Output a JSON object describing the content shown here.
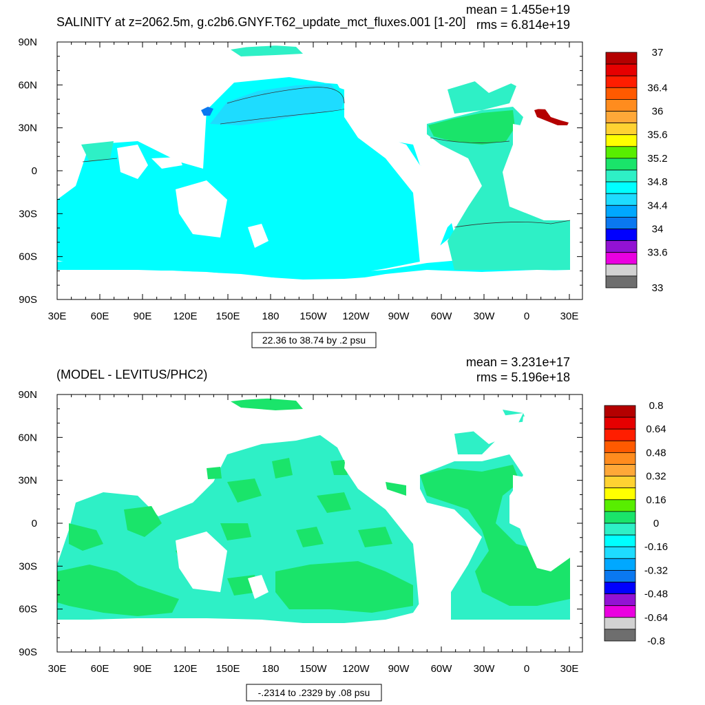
{
  "chart_data": [
    {
      "type": "heatmap",
      "title": "SALINITY at z=2062.5m, g.c2b6.GNYF.T62_update_mct_fluxes.001 [1-20]",
      "stats": {
        "mean": "mean = 1.455e+19",
        "rms": "rms = 6.814e+19"
      },
      "x_ticks": [
        "30E",
        "60E",
        "90E",
        "120E",
        "150E",
        "180",
        "150W",
        "120W",
        "90W",
        "60W",
        "30W",
        "0",
        "30E"
      ],
      "y_ticks": [
        "90N",
        "60N",
        "30N",
        "0",
        "30S",
        "60S",
        "90S"
      ],
      "xlim": [
        30,
        390
      ],
      "ylim": [
        -90,
        90
      ],
      "contour_info": "22.36 to 38.74 by .2 psu",
      "colorbar": {
        "labels": [
          {
            "text": "37",
            "value": 37
          },
          {
            "text": "36.4",
            "value": 36.4
          },
          {
            "text": "36",
            "value": 36
          },
          {
            "text": "35.6",
            "value": 35.6
          },
          {
            "text": "35.2",
            "value": 35.2
          },
          {
            "text": "34.8",
            "value": 34.8
          },
          {
            "text": "34.4",
            "value": 34.4
          },
          {
            "text": "34",
            "value": 34
          },
          {
            "text": "33.6",
            "value": 33.6
          },
          {
            "text": "33",
            "value": 33
          }
        ]
      },
      "dominant_value": 34.8
    },
    {
      "type": "heatmap",
      "title": "(MODEL - LEVITUS/PHC2)",
      "stats": {
        "mean": "mean = 3.231e+17",
        "rms": "rms = 5.196e+18"
      },
      "x_ticks": [
        "30E",
        "60E",
        "90E",
        "120E",
        "150E",
        "180",
        "150W",
        "120W",
        "90W",
        "60W",
        "30W",
        "0",
        "30E"
      ],
      "y_ticks": [
        "90N",
        "60N",
        "30N",
        "0",
        "30S",
        "60S",
        "90S"
      ],
      "xlim": [
        30,
        390
      ],
      "ylim": [
        -90,
        90
      ],
      "contour_info": "-.2314 to .2329 by .08 psu",
      "colorbar": {
        "labels": [
          {
            "text": "0.8",
            "value": 0.8
          },
          {
            "text": "0.64",
            "value": 0.64
          },
          {
            "text": "0.48",
            "value": 0.48
          },
          {
            "text": "0.32",
            "value": 0.32
          },
          {
            "text": "0.16",
            "value": 0.16
          },
          {
            "text": "0",
            "value": 0
          },
          {
            "text": "-0.16",
            "value": -0.16
          },
          {
            "text": "-0.32",
            "value": -0.32
          },
          {
            "text": "-0.48",
            "value": -0.48
          },
          {
            "text": "-0.64",
            "value": -0.64
          },
          {
            "text": "-0.8",
            "value": -0.8
          }
        ]
      },
      "dominant_value": -0.08
    }
  ],
  "colors": {
    "palette": [
      "#6e6e6e",
      "#d2d2d2",
      "#ea00e0",
      "#9212d4",
      "#0000ff",
      "#0a78f0",
      "#00a8ff",
      "#1edcff",
      "#00ffff",
      "#2ef0c6",
      "#1ae46a",
      "#58ee00",
      "#ffff00",
      "#ffd232",
      "#ffa838",
      "#ff8c1e",
      "#ff5a00",
      "#ff1e00",
      "#e60000",
      "#b40000"
    ],
    "ocean_top": "#00ffff",
    "ocean_bottom": "#2ef0c6",
    "green": "#1ae46a"
  }
}
